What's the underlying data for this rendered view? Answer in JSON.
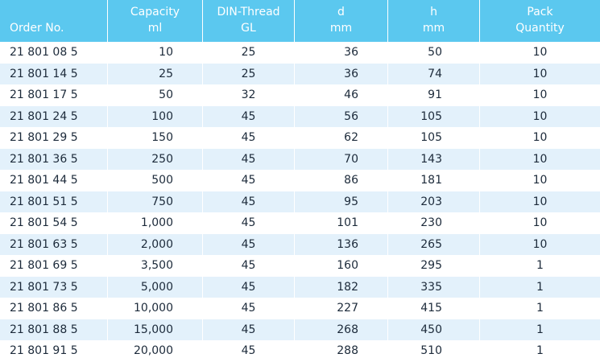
{
  "table": {
    "headers": [
      {
        "line1": "",
        "line2": "Order No."
      },
      {
        "line1": "Capacity",
        "line2": "ml"
      },
      {
        "line1": "DIN-Thread",
        "line2": "GL"
      },
      {
        "line1": "d",
        "line2": "mm"
      },
      {
        "line1": "h",
        "line2": "mm"
      },
      {
        "line1": "Pack",
        "line2": "Quantity"
      }
    ],
    "rows": [
      [
        "21 801 08 5",
        "10",
        "25",
        "36",
        "50",
        "10"
      ],
      [
        "21 801 14 5",
        "25",
        "25",
        "36",
        "74",
        "10"
      ],
      [
        "21 801 17 5",
        "50",
        "32",
        "46",
        "91",
        "10"
      ],
      [
        "21 801 24 5",
        "100",
        "45",
        "56",
        "105",
        "10"
      ],
      [
        "21 801 29 5",
        "150",
        "45",
        "62",
        "105",
        "10"
      ],
      [
        "21 801 36 5",
        "250",
        "45",
        "70",
        "143",
        "10"
      ],
      [
        "21 801 44 5",
        "500",
        "45",
        "86",
        "181",
        "10"
      ],
      [
        "21 801 51 5",
        "750",
        "45",
        "95",
        "203",
        "10"
      ],
      [
        "21 801 54 5",
        "1,000",
        "45",
        "101",
        "230",
        "10"
      ],
      [
        "21 801 63 5",
        "2,000",
        "45",
        "136",
        "265",
        "10"
      ],
      [
        "21 801 69 5",
        "3,500",
        "45",
        "160",
        "295",
        "1"
      ],
      [
        "21 801 73 5",
        "5,000",
        "45",
        "182",
        "335",
        "1"
      ],
      [
        "21 801 86 5",
        "10,000",
        "45",
        "227",
        "415",
        "1"
      ],
      [
        "21 801 88 5",
        "15,000",
        "45",
        "268",
        "450",
        "1"
      ],
      [
        "21 801 91 5",
        "20,000",
        "45",
        "288",
        "510",
        "1"
      ]
    ]
  },
  "colors": {
    "header_bg": "#5bc8ef",
    "header_text": "#ffffff",
    "alt_row_bg": "#e3f1fb",
    "body_text": "#1c2a3a"
  }
}
